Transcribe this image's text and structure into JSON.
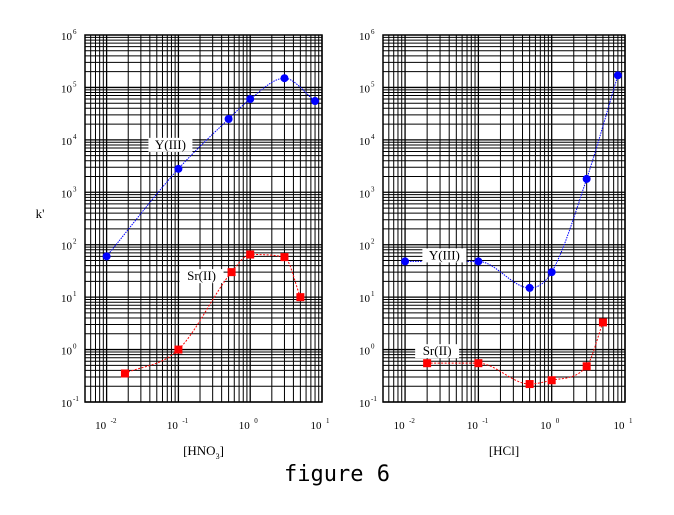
{
  "caption": "figure 6",
  "chart_data": [
    {
      "type": "line",
      "title": "",
      "xlabel": "[HNO3]",
      "xlabel_parts": [
        "[HNO",
        "3",
        "]"
      ],
      "ylabel": "k'",
      "xscale": "log",
      "yscale": "log",
      "xlim": [
        0.005,
        10
      ],
      "ylim": [
        0.1,
        1000000
      ],
      "grid": true,
      "xtick_labels": [
        {
          "base": "10",
          "exp": "-2"
        },
        {
          "base": "10",
          "exp": "-1"
        },
        {
          "base": "10",
          "exp": "0"
        },
        {
          "base": "10",
          "exp": "1"
        }
      ],
      "ytick_labels": [
        {
          "base": "10",
          "exp": "-1"
        },
        {
          "base": "10",
          "exp": "0"
        },
        {
          "base": "10",
          "exp": "1"
        },
        {
          "base": "10",
          "exp": "2"
        },
        {
          "base": "10",
          "exp": "3"
        },
        {
          "base": "10",
          "exp": "4"
        },
        {
          "base": "10",
          "exp": "5"
        },
        {
          "base": "10",
          "exp": "6"
        }
      ],
      "series": [
        {
          "name": "Y(III)",
          "color": "#0000ff",
          "marker": "circle",
          "x": [
            0.01,
            0.1,
            0.5,
            1,
            3,
            8
          ],
          "y": [
            60,
            2800,
            25000,
            60000,
            150000,
            55000
          ]
        },
        {
          "name": "Sr(II)",
          "color": "#ff0000",
          "marker": "square",
          "x": [
            0.018,
            0.1,
            0.55,
            1,
            3,
            5
          ],
          "y": [
            0.35,
            1.0,
            30,
            65,
            58,
            10
          ]
        }
      ]
    },
    {
      "type": "line",
      "title": "",
      "xlabel": "[HCl]",
      "xlabel_parts": [
        "[HCl]",
        "",
        ""
      ],
      "ylabel": "",
      "xscale": "log",
      "yscale": "log",
      "xlim": [
        0.005,
        10
      ],
      "ylim": [
        0.1,
        1000000
      ],
      "grid": true,
      "xtick_labels": [
        {
          "base": "10",
          "exp": "-2"
        },
        {
          "base": "10",
          "exp": "-1"
        },
        {
          "base": "10",
          "exp": "0"
        },
        {
          "base": "10",
          "exp": "1"
        }
      ],
      "ytick_labels": [
        {
          "base": "10",
          "exp": "-1"
        },
        {
          "base": "10",
          "exp": "0"
        },
        {
          "base": "10",
          "exp": "1"
        },
        {
          "base": "10",
          "exp": "2"
        },
        {
          "base": "10",
          "exp": "3"
        },
        {
          "base": "10",
          "exp": "4"
        },
        {
          "base": "10",
          "exp": "5"
        },
        {
          "base": "10",
          "exp": "6"
        }
      ],
      "series": [
        {
          "name": "Y(III)",
          "color": "#0000ff",
          "marker": "circle",
          "x": [
            0.01,
            0.1,
            0.5,
            1,
            3,
            8
          ],
          "y": [
            48,
            48,
            15,
            30,
            1800,
            170000
          ]
        },
        {
          "name": "Sr(II)",
          "color": "#ff0000",
          "marker": "square",
          "x": [
            0.02,
            0.1,
            0.5,
            1,
            3,
            5
          ],
          "y": [
            0.55,
            0.55,
            0.22,
            0.26,
            0.48,
            3.3
          ]
        }
      ]
    }
  ]
}
